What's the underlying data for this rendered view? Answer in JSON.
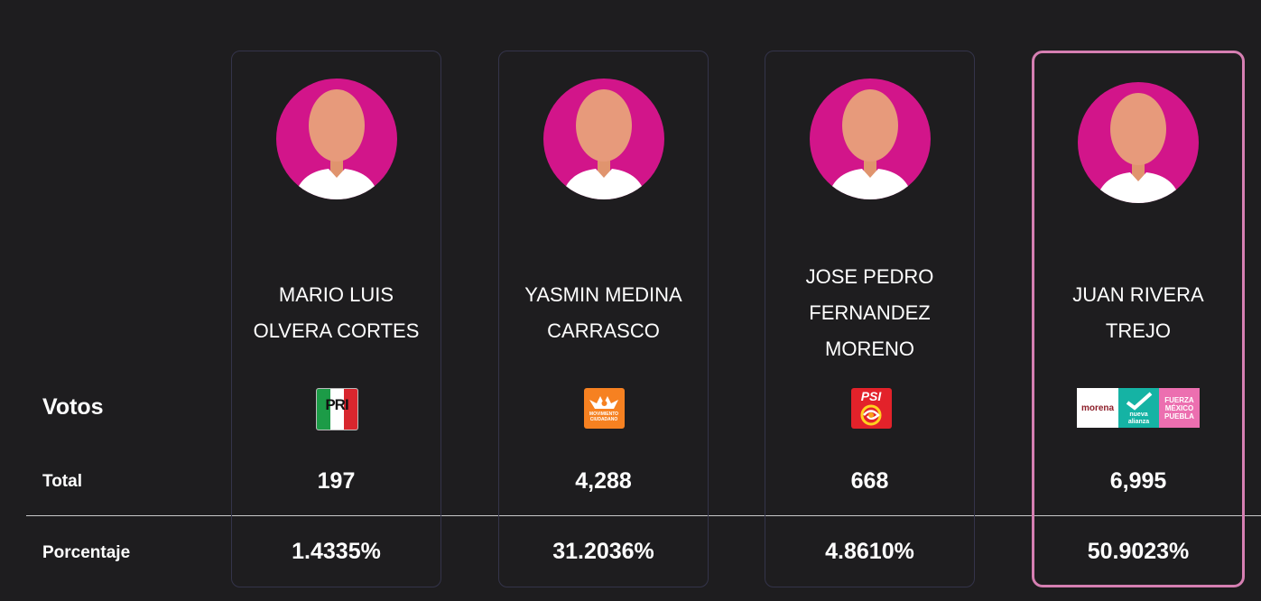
{
  "rows": {
    "votos_label": "Votos",
    "total_label": "Total",
    "porcentaje_label": "Porcentaje"
  },
  "candidates": [
    {
      "name_lines": [
        "MARIO LUIS",
        "OLVERA CORTES"
      ],
      "party": "PRI",
      "party_logo_text": "PRI",
      "total": "197",
      "porcentaje": "1.4335%"
    },
    {
      "name_lines": [
        "YASMIN MEDINA",
        "CARRASCO"
      ],
      "party": "Movimiento Ciudadano",
      "party_logo_text": "MOVIMIENTO CIUDADANO",
      "total": "4,288",
      "porcentaje": "31.2036%"
    },
    {
      "name_lines": [
        "JOSE PEDRO",
        "FERNANDEZ",
        "MORENO"
      ],
      "party": "PSI",
      "party_logo_text": "PSI",
      "total": "668",
      "porcentaje": "4.8610%"
    },
    {
      "name_lines": [
        "JUAN RIVERA",
        "TREJO"
      ],
      "party": "morena / nueva alianza / fuerza mexico",
      "party_logo_text": [
        "morena",
        "nueva alianza",
        "FUERZA MÉXICO PUEBLA"
      ],
      "total": "6,995",
      "porcentaje": "50.9023%",
      "highlighted": true
    }
  ],
  "colors": {
    "background": "#1e1d1f",
    "avatar_bg": "#d2158a",
    "card_border": "#34344a",
    "winner_border": "#d67fb2"
  }
}
